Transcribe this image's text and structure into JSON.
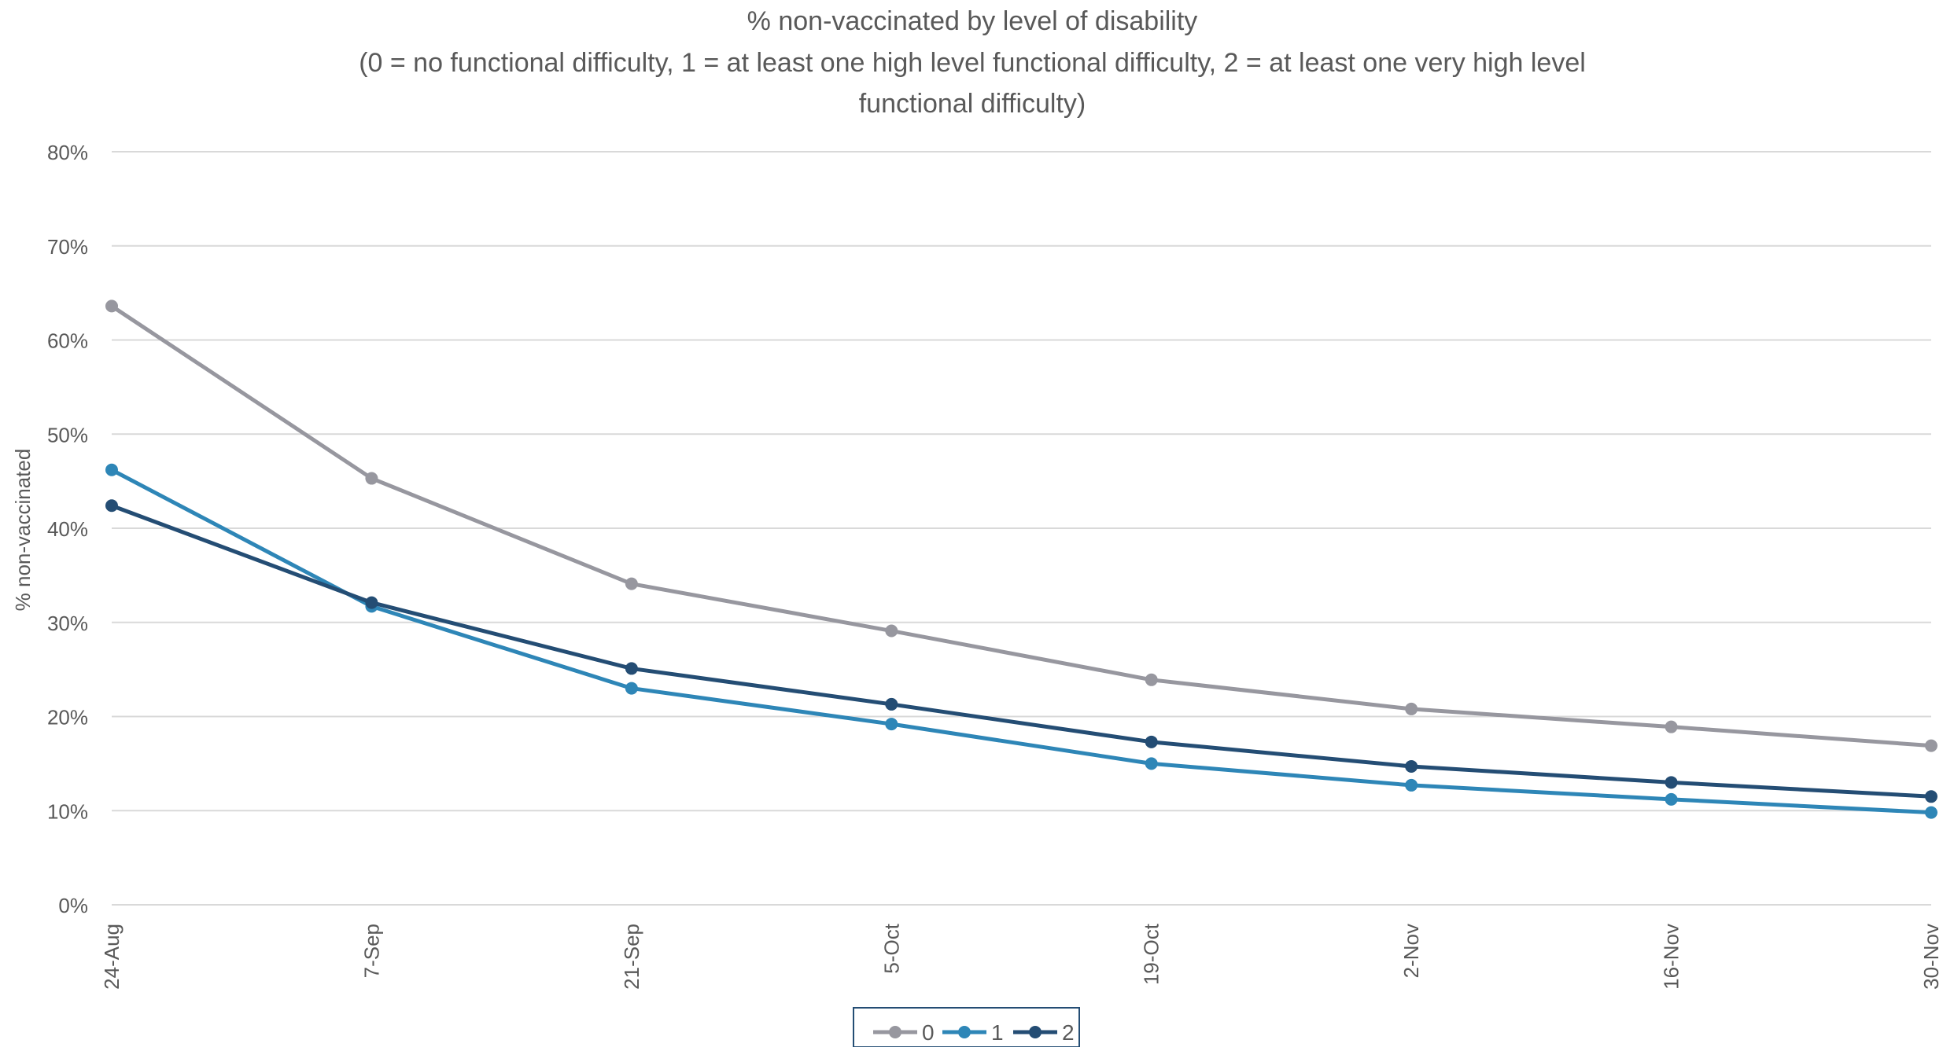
{
  "chart_data": {
    "type": "line",
    "title": "% non-vaccinated by level of disability",
    "subtitle_lines": [
      "(0 = no functional difficulty, 1 = at least one high level functional difficulty, 2 = at least one very high level",
      "functional difficulty)"
    ],
    "ylabel": "% non-vaccinated",
    "xlabel": "",
    "categories": [
      "24-Aug",
      "7-Sep",
      "21-Sep",
      "5-Oct",
      "19-Oct",
      "2-Nov",
      "16-Nov",
      "30-Nov"
    ],
    "ylim": [
      0,
      80
    ],
    "yticks": [
      0,
      10,
      20,
      30,
      40,
      50,
      60,
      70,
      80
    ],
    "ytick_labels": [
      "0%",
      "10%",
      "20%",
      "30%",
      "40%",
      "50%",
      "60%",
      "70%",
      "80%"
    ],
    "grid": "horizontal",
    "legend_position": "bottom",
    "series": [
      {
        "name": "0",
        "color": "#97979f",
        "values": [
          63.6,
          45.3,
          34.1,
          29.1,
          23.9,
          20.8,
          18.9,
          16.9
        ]
      },
      {
        "name": "1",
        "color": "#2e86b7",
        "values": [
          46.2,
          31.7,
          23.0,
          19.2,
          15.0,
          12.7,
          11.2,
          9.8
        ]
      },
      {
        "name": "2",
        "color": "#244d74",
        "values": [
          42.4,
          32.1,
          25.1,
          21.3,
          17.3,
          14.7,
          13.0,
          11.5
        ]
      }
    ]
  }
}
